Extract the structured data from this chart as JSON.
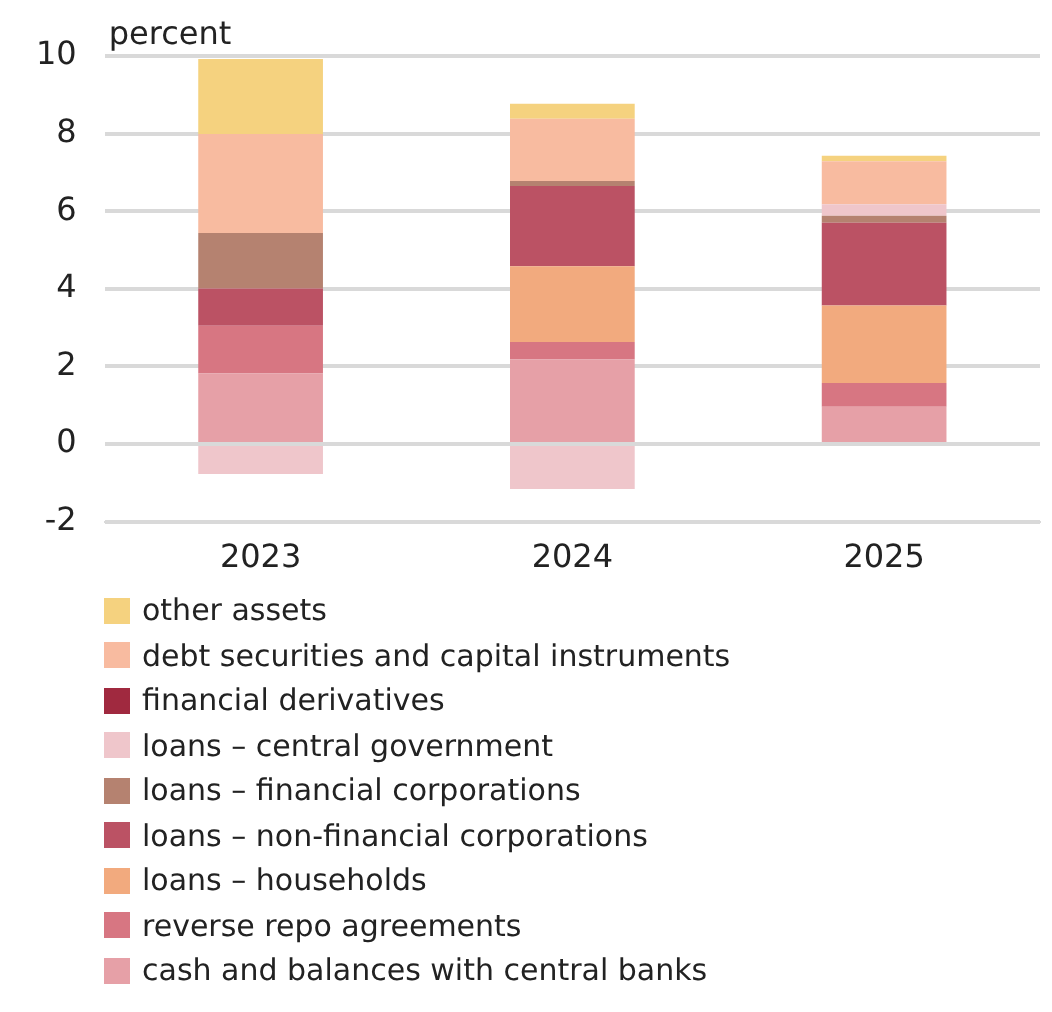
{
  "chart_data": {
    "type": "bar",
    "stacked": true,
    "ylabel": "percent",
    "categories": [
      "2023",
      "2024",
      "2025"
    ],
    "series": [
      {
        "name": "cash and balances with central banks",
        "color": "#e6a0a7",
        "values": [
          1.82,
          2.18,
          0.96
        ]
      },
      {
        "name": "reverse repo agreements",
        "color": "#d77682",
        "values": [
          1.23,
          0.45,
          0.61
        ]
      },
      {
        "name": "loans – households",
        "color": "#f2aa7e",
        "values": [
          null,
          1.95,
          2.0
        ]
      },
      {
        "name": "loans – non-financial corporations",
        "color": "#bb5264",
        "values": [
          0.96,
          2.07,
          2.13
        ]
      },
      {
        "name": "loans – financial corporations",
        "color": "#b58270",
        "values": [
          1.43,
          0.13,
          0.18
        ]
      },
      {
        "name": "loans – central government",
        "color": "#efc6cb",
        "values": [
          -0.77,
          -1.16,
          0.3
        ]
      },
      {
        "name": "financial derivatives",
        "color": "#a0293f",
        "values": [
          null,
          null,
          null
        ]
      },
      {
        "name": "debt securities and capital instruments",
        "color": "#f8bba0",
        "values": [
          2.55,
          1.6,
          1.11
        ]
      },
      {
        "name": "other assets",
        "color": "#f5d27f",
        "values": [
          1.93,
          0.39,
          0.14
        ]
      }
    ],
    "ylim": [
      -2,
      10
    ],
    "yticks": [
      -2,
      0,
      2,
      4,
      6,
      8,
      10
    ],
    "grid": "y",
    "legend": "bottom"
  }
}
